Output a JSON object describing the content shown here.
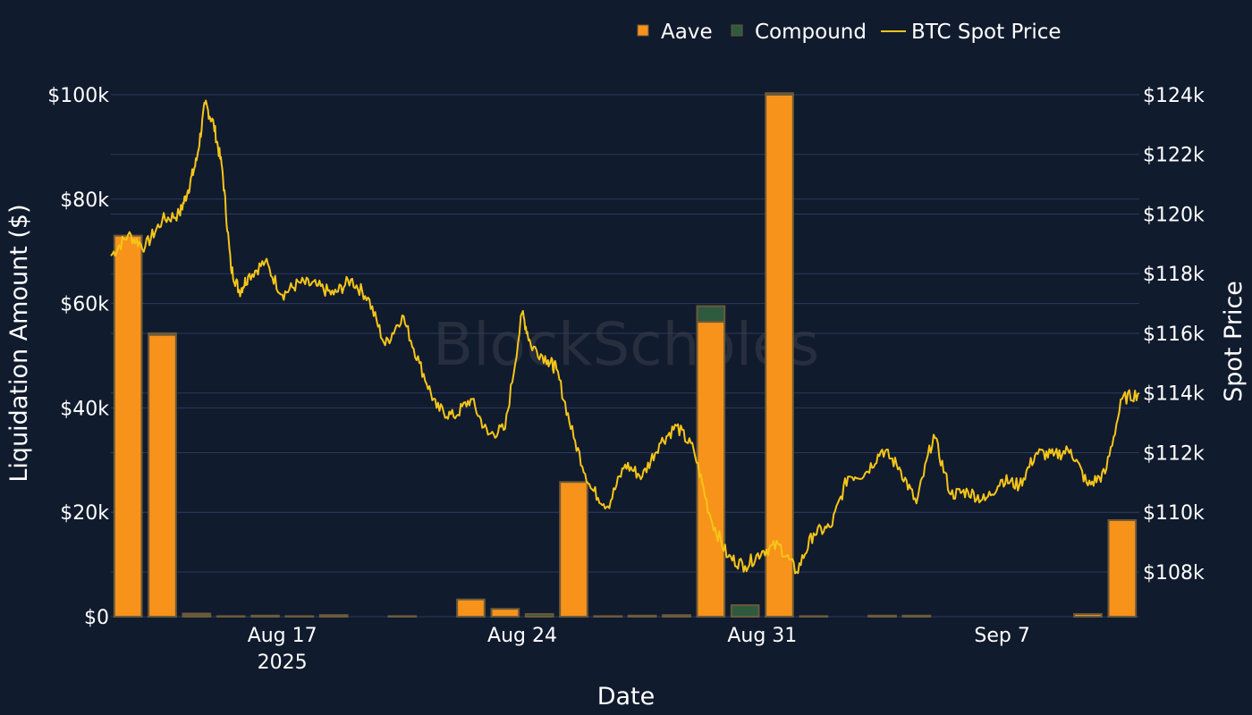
{
  "watermark": "BlockScholes",
  "chart_data": {
    "type": "bar",
    "xlabel": "Date",
    "ylabel": "Liquidation Amount ($)",
    "y2label": "Spot Price",
    "legend_position": "top-right",
    "grid": true,
    "colors": {
      "background": "#111b2e",
      "grid": "#2b3a5c",
      "aave": "#f7931a",
      "compound": "#2e5a3e",
      "btc": "#f5c518",
      "bar_outline": "#6b5a3a"
    },
    "ylim": [
      0,
      100000
    ],
    "y2lim": [
      106500,
      124000
    ],
    "xlim": [
      "2025-08-12T00:00",
      "2025-09-11T00:00"
    ],
    "y_ticks": [
      "$0",
      "$20k",
      "$40k",
      "$60k",
      "$80k",
      "$100k"
    ],
    "y2_ticks": [
      "$108k",
      "$110k",
      "$112k",
      "$114k",
      "$116k",
      "$118k",
      "$120k",
      "$122k",
      "$124k"
    ],
    "x_ticks": [
      {
        "date": "2025-08-17",
        "label": "Aug 17",
        "sublabel": "2025"
      },
      {
        "date": "2025-08-24",
        "label": "Aug 24",
        "sublabel": ""
      },
      {
        "date": "2025-08-31",
        "label": "Aug 31",
        "sublabel": ""
      },
      {
        "date": "2025-09-07",
        "label": "Sep 7",
        "sublabel": ""
      }
    ],
    "categories": [
      "2025-08-12",
      "2025-08-13",
      "2025-08-14",
      "2025-08-15",
      "2025-08-16",
      "2025-08-17",
      "2025-08-18",
      "2025-08-19",
      "2025-08-20",
      "2025-08-21",
      "2025-08-22",
      "2025-08-23",
      "2025-08-24",
      "2025-08-25",
      "2025-08-26",
      "2025-08-27",
      "2025-08-28",
      "2025-08-29",
      "2025-08-30",
      "2025-08-31",
      "2025-09-01",
      "2025-09-02",
      "2025-09-03",
      "2025-09-04",
      "2025-09-05",
      "2025-09-06",
      "2025-09-07",
      "2025-09-08",
      "2025-09-09",
      "2025-09-10"
    ],
    "series": [
      {
        "name": "Aave",
        "kind": "bar",
        "values": [
          73000,
          54000,
          300,
          0,
          0,
          0,
          0,
          0,
          0,
          0,
          3300,
          1500,
          0,
          25800,
          0,
          0,
          0,
          56500,
          0,
          100000,
          0,
          0,
          200,
          0,
          0,
          0,
          0,
          0,
          500,
          18500
        ]
      },
      {
        "name": "Compound",
        "kind": "bar",
        "values": [
          0,
          300,
          300,
          100,
          200,
          100,
          300,
          0,
          100,
          0,
          0,
          0,
          500,
          0,
          100,
          200,
          300,
          3000,
          2200,
          300,
          100,
          0,
          0,
          200,
          0,
          0,
          0,
          0,
          0,
          0
        ]
      },
      {
        "name": "BTC Spot Price",
        "kind": "line",
        "axis": "y2",
        "points": [
          [
            "2025-08-12T00:00",
            118600
          ],
          [
            "2025-08-12T12:00",
            119300
          ],
          [
            "2025-08-13T00:00",
            118900
          ],
          [
            "2025-08-13T12:00",
            119800
          ],
          [
            "2025-08-14T00:00",
            120000
          ],
          [
            "2025-08-14T06:00",
            120800
          ],
          [
            "2025-08-14T12:00",
            121800
          ],
          [
            "2025-08-14T18:00",
            123700
          ],
          [
            "2025-08-15T00:00",
            123000
          ],
          [
            "2025-08-15T06:00",
            121500
          ],
          [
            "2025-08-15T12:00",
            118200
          ],
          [
            "2025-08-15T18:00",
            117400
          ],
          [
            "2025-08-16T00:00",
            117900
          ],
          [
            "2025-08-16T12:00",
            118400
          ],
          [
            "2025-08-17T00:00",
            117300
          ],
          [
            "2025-08-17T12:00",
            117700
          ],
          [
            "2025-08-18T00:00",
            117600
          ],
          [
            "2025-08-18T12:00",
            117300
          ],
          [
            "2025-08-19T00:00",
            117800
          ],
          [
            "2025-08-19T12:00",
            117200
          ],
          [
            "2025-08-20T00:00",
            115600
          ],
          [
            "2025-08-20T12:00",
            116600
          ],
          [
            "2025-08-21T00:00",
            115000
          ],
          [
            "2025-08-21T12:00",
            113500
          ],
          [
            "2025-08-22T00:00",
            113200
          ],
          [
            "2025-08-22T12:00",
            113800
          ],
          [
            "2025-08-23T00:00",
            112600
          ],
          [
            "2025-08-23T12:00",
            112800
          ],
          [
            "2025-08-24T00:00",
            116700
          ],
          [
            "2025-08-24T06:00",
            115600
          ],
          [
            "2025-08-24T18:00",
            115100
          ],
          [
            "2025-08-25T00:00",
            114800
          ],
          [
            "2025-08-25T12:00",
            112500
          ],
          [
            "2025-08-26T00:00",
            110800
          ],
          [
            "2025-08-26T12:00",
            110200
          ],
          [
            "2025-08-27T00:00",
            111600
          ],
          [
            "2025-08-27T12:00",
            111200
          ],
          [
            "2025-08-28T00:00",
            112300
          ],
          [
            "2025-08-28T12:00",
            112900
          ],
          [
            "2025-08-29T00:00",
            112100
          ],
          [
            "2025-08-29T12:00",
            109800
          ],
          [
            "2025-08-30T00:00",
            108500
          ],
          [
            "2025-08-30T12:00",
            108200
          ],
          [
            "2025-08-31T00:00",
            108700
          ],
          [
            "2025-08-31T12:00",
            108900
          ],
          [
            "2025-09-01T00:00",
            108000
          ],
          [
            "2025-09-01T12:00",
            109300
          ],
          [
            "2025-09-02T00:00",
            109500
          ],
          [
            "2025-09-02T12:00",
            111200
          ],
          [
            "2025-09-03T00:00",
            111300
          ],
          [
            "2025-09-03T12:00",
            112100
          ],
          [
            "2025-09-04T00:00",
            111500
          ],
          [
            "2025-09-04T12:00",
            110300
          ],
          [
            "2025-09-05T00:00",
            112600
          ],
          [
            "2025-09-05T12:00",
            110600
          ],
          [
            "2025-09-06T00:00",
            110700
          ],
          [
            "2025-09-06T12:00",
            110400
          ],
          [
            "2025-09-07T00:00",
            111100
          ],
          [
            "2025-09-07T12:00",
            110900
          ],
          [
            "2025-09-08T00:00",
            112000
          ],
          [
            "2025-09-08T12:00",
            111900
          ],
          [
            "2025-09-09T00:00",
            112100
          ],
          [
            "2025-09-09T12:00",
            110900
          ],
          [
            "2025-09-10T00:00",
            111300
          ],
          [
            "2025-09-10T12:00",
            113800
          ],
          [
            "2025-09-11T00:00",
            114000
          ]
        ]
      }
    ]
  }
}
